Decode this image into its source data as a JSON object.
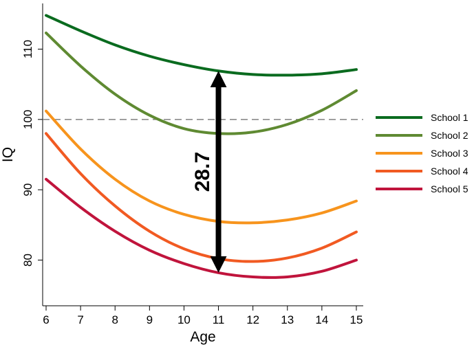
{
  "chart_data": {
    "type": "line",
    "title": "",
    "xlabel": "Age",
    "ylabel": "IQ",
    "xlim": [
      5.9,
      15.2
    ],
    "ylim": [
      73.5,
      116.5
    ],
    "x_ticks": [
      6,
      7,
      8,
      9,
      10,
      11,
      12,
      13,
      14,
      15
    ],
    "y_ticks": [
      80,
      90,
      100,
      110
    ],
    "grid": false,
    "reference_line": {
      "y": 100,
      "style": "dashed",
      "color": "#808080"
    },
    "legend_position": "right",
    "series": [
      {
        "name": "School 1",
        "color": "#0a6b1f",
        "x": [
          6,
          7,
          8,
          9,
          10,
          11,
          12,
          13,
          14,
          15
        ],
        "y": [
          114.8,
          112.6,
          110.6,
          109.0,
          107.8,
          106.9,
          106.4,
          106.3,
          106.5,
          107.1
        ]
      },
      {
        "name": "School 2",
        "color": "#5f8a32",
        "x": [
          6,
          7,
          8,
          9,
          10,
          11,
          12,
          13,
          14,
          15
        ],
        "y": [
          112.3,
          107.6,
          103.6,
          100.6,
          98.7,
          98.0,
          98.2,
          99.3,
          101.3,
          104.1
        ]
      },
      {
        "name": "School 3",
        "color": "#f7941d",
        "x": [
          6,
          7,
          8,
          9,
          10,
          11,
          12,
          13,
          14,
          15
        ],
        "y": [
          101.2,
          95.8,
          91.5,
          88.4,
          86.5,
          85.5,
          85.3,
          85.7,
          86.7,
          88.4
        ]
      },
      {
        "name": "School 4",
        "color": "#f15a22",
        "x": [
          6,
          7,
          8,
          9,
          10,
          11,
          12,
          13,
          14,
          15
        ],
        "y": [
          98.0,
          92.3,
          87.7,
          84.1,
          81.6,
          80.2,
          79.8,
          80.3,
          81.7,
          84.0
        ]
      },
      {
        "name": "School 5",
        "color": "#c0143c",
        "x": [
          6,
          7,
          8,
          9,
          10,
          11,
          12,
          13,
          14,
          15
        ],
        "y": [
          91.5,
          87.5,
          84.1,
          81.4,
          79.5,
          78.2,
          77.6,
          77.6,
          78.4,
          80.0
        ]
      }
    ],
    "annotations": [
      {
        "type": "double-arrow",
        "x": 11,
        "y_from": 78.2,
        "y_to": 106.9,
        "label": "28.7"
      }
    ]
  }
}
